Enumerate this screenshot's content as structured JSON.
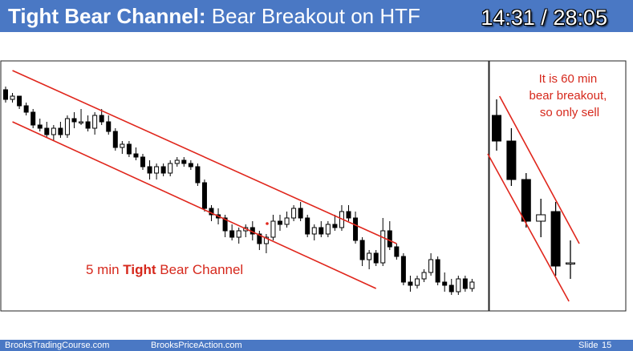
{
  "header": {
    "title_bold": "Tight Bear Channel:",
    "title_rest": "Bear Breakout on HTF",
    "timer": "14:31 / 28:05"
  },
  "left_chart": {
    "annotation_pre": "5 min ",
    "annotation_bold": "Tight",
    "annotation_post": " Bear Channel"
  },
  "right_chart": {
    "annotation_lines": [
      "It is 60 min",
      "bear breakout,",
      "so only sell"
    ]
  },
  "footer": {
    "site1": "BrooksTradingCourse.com",
    "site2": "BrooksPriceAction.com",
    "slide_label": "Slide",
    "slide_number": "15"
  },
  "colors": {
    "header_bg": "#4a78c4",
    "channel_line": "#e0261c",
    "annotation_text": "#d6281c"
  },
  "chart_data": [
    {
      "type": "candlestick",
      "timeframe": "5 min",
      "title": "",
      "candles": [
        {
          "o": 96,
          "h": 97,
          "l": 92,
          "c": 93
        },
        {
          "o": 93,
          "h": 95,
          "l": 92,
          "c": 94
        },
        {
          "o": 94,
          "h": 94,
          "l": 90,
          "c": 91
        },
        {
          "o": 91,
          "h": 92,
          "l": 88,
          "c": 89
        },
        {
          "o": 89,
          "h": 90,
          "l": 84,
          "c": 85
        },
        {
          "o": 85,
          "h": 87,
          "l": 83,
          "c": 84
        },
        {
          "o": 84,
          "h": 86,
          "l": 81,
          "c": 82
        },
        {
          "o": 82,
          "h": 85,
          "l": 80,
          "c": 84
        },
        {
          "o": 84,
          "h": 86,
          "l": 81,
          "c": 82
        },
        {
          "o": 82,
          "h": 88,
          "l": 81,
          "c": 87
        },
        {
          "o": 87,
          "h": 89,
          "l": 84,
          "c": 86
        },
        {
          "o": 86,
          "h": 90,
          "l": 85,
          "c": 86
        },
        {
          "o": 86,
          "h": 88,
          "l": 83,
          "c": 84
        },
        {
          "o": 84,
          "h": 89,
          "l": 82,
          "c": 88
        },
        {
          "o": 88,
          "h": 90,
          "l": 85,
          "c": 86
        },
        {
          "o": 86,
          "h": 88,
          "l": 82,
          "c": 83
        },
        {
          "o": 83,
          "h": 84,
          "l": 77,
          "c": 78
        },
        {
          "o": 78,
          "h": 80,
          "l": 76,
          "c": 79
        },
        {
          "o": 79,
          "h": 80,
          "l": 75,
          "c": 76
        },
        {
          "o": 76,
          "h": 78,
          "l": 74,
          "c": 75
        },
        {
          "o": 75,
          "h": 76,
          "l": 71,
          "c": 72
        },
        {
          "o": 72,
          "h": 74,
          "l": 68,
          "c": 70
        },
        {
          "o": 70,
          "h": 73,
          "l": 68,
          "c": 72
        },
        {
          "o": 72,
          "h": 73,
          "l": 69,
          "c": 70
        },
        {
          "o": 70,
          "h": 74,
          "l": 69,
          "c": 73
        },
        {
          "o": 73,
          "h": 75,
          "l": 72,
          "c": 74
        },
        {
          "o": 74,
          "h": 75,
          "l": 72,
          "c": 73
        },
        {
          "o": 73,
          "h": 74,
          "l": 71,
          "c": 72
        },
        {
          "o": 72,
          "h": 73,
          "l": 66,
          "c": 67
        },
        {
          "o": 67,
          "h": 68,
          "l": 58,
          "c": 59
        },
        {
          "o": 59,
          "h": 60,
          "l": 55,
          "c": 57
        },
        {
          "o": 57,
          "h": 59,
          "l": 54,
          "c": 56
        },
        {
          "o": 56,
          "h": 57,
          "l": 50,
          "c": 52
        },
        {
          "o": 52,
          "h": 54,
          "l": 49,
          "c": 50
        },
        {
          "o": 50,
          "h": 53,
          "l": 48,
          "c": 52
        },
        {
          "o": 52,
          "h": 54,
          "l": 50,
          "c": 53
        },
        {
          "o": 53,
          "h": 55,
          "l": 49,
          "c": 51
        },
        {
          "o": 51,
          "h": 52,
          "l": 46,
          "c": 48
        },
        {
          "o": 48,
          "h": 51,
          "l": 45,
          "c": 50
        },
        {
          "o": 50,
          "h": 57,
          "l": 49,
          "c": 55
        },
        {
          "o": 55,
          "h": 57,
          "l": 52,
          "c": 54
        },
        {
          "o": 54,
          "h": 58,
          "l": 53,
          "c": 56
        },
        {
          "o": 56,
          "h": 60,
          "l": 55,
          "c": 59
        },
        {
          "o": 59,
          "h": 61,
          "l": 55,
          "c": 56
        },
        {
          "o": 56,
          "h": 57,
          "l": 50,
          "c": 51
        },
        {
          "o": 51,
          "h": 54,
          "l": 49,
          "c": 53
        },
        {
          "o": 53,
          "h": 55,
          "l": 50,
          "c": 51
        },
        {
          "o": 51,
          "h": 55,
          "l": 50,
          "c": 54
        },
        {
          "o": 54,
          "h": 57,
          "l": 52,
          "c": 53
        },
        {
          "o": 53,
          "h": 60,
          "l": 52,
          "c": 58
        },
        {
          "o": 58,
          "h": 60,
          "l": 55,
          "c": 56
        },
        {
          "o": 56,
          "h": 58,
          "l": 48,
          "c": 49
        },
        {
          "o": 49,
          "h": 50,
          "l": 41,
          "c": 43
        },
        {
          "o": 43,
          "h": 46,
          "l": 40,
          "c": 45
        },
        {
          "o": 45,
          "h": 46,
          "l": 41,
          "c": 42
        },
        {
          "o": 42,
          "h": 56,
          "l": 41,
          "c": 52
        },
        {
          "o": 52,
          "h": 55,
          "l": 46,
          "c": 47
        },
        {
          "o": 47,
          "h": 48,
          "l": 43,
          "c": 44
        },
        {
          "o": 44,
          "h": 45,
          "l": 35,
          "c": 36
        },
        {
          "o": 36,
          "h": 38,
          "l": 33,
          "c": 35
        },
        {
          "o": 35,
          "h": 38,
          "l": 34,
          "c": 37
        },
        {
          "o": 37,
          "h": 40,
          "l": 36,
          "c": 39
        },
        {
          "o": 39,
          "h": 45,
          "l": 38,
          "c": 43
        },
        {
          "o": 43,
          "h": 44,
          "l": 35,
          "c": 36
        },
        {
          "o": 36,
          "h": 39,
          "l": 33,
          "c": 35
        },
        {
          "o": 35,
          "h": 37,
          "l": 32,
          "c": 33
        },
        {
          "o": 33,
          "h": 38,
          "l": 32,
          "c": 37
        },
        {
          "o": 37,
          "h": 38,
          "l": 33,
          "c": 34
        },
        {
          "o": 34,
          "h": 37,
          "l": 33,
          "c": 36
        }
      ],
      "channel_lines": [
        {
          "name": "upper",
          "from": {
            "bar": 1,
            "price": 102
          },
          "to": {
            "bar": 57,
            "price": 48
          }
        },
        {
          "name": "lower",
          "from": {
            "bar": 1,
            "price": 86
          },
          "to": {
            "bar": 54,
            "price": 34
          }
        }
      ],
      "ylim": [
        28,
        104
      ]
    },
    {
      "type": "candlestick",
      "timeframe": "60 min",
      "title": "",
      "candles": [
        {
          "o": 88,
          "h": 93,
          "l": 77,
          "c": 80
        },
        {
          "o": 80,
          "h": 84,
          "l": 66,
          "c": 68
        },
        {
          "o": 68,
          "h": 70,
          "l": 53,
          "c": 55
        },
        {
          "o": 55,
          "h": 62,
          "l": 50,
          "c": 57
        },
        {
          "o": 58,
          "h": 61,
          "l": 38,
          "c": 41
        },
        {
          "o": 42,
          "h": 49,
          "l": 37,
          "c": 42
        }
      ],
      "channel_lines": [
        {
          "name": "upper",
          "from": {
            "bar": 0.2,
            "price": 94
          },
          "to": {
            "bar": 5.6,
            "price": 48
          }
        },
        {
          "name": "lower",
          "from": {
            "bar": -0.6,
            "price": 76
          },
          "to": {
            "bar": 4.9,
            "price": 30
          }
        }
      ],
      "ylim": [
        28,
        104
      ]
    }
  ]
}
